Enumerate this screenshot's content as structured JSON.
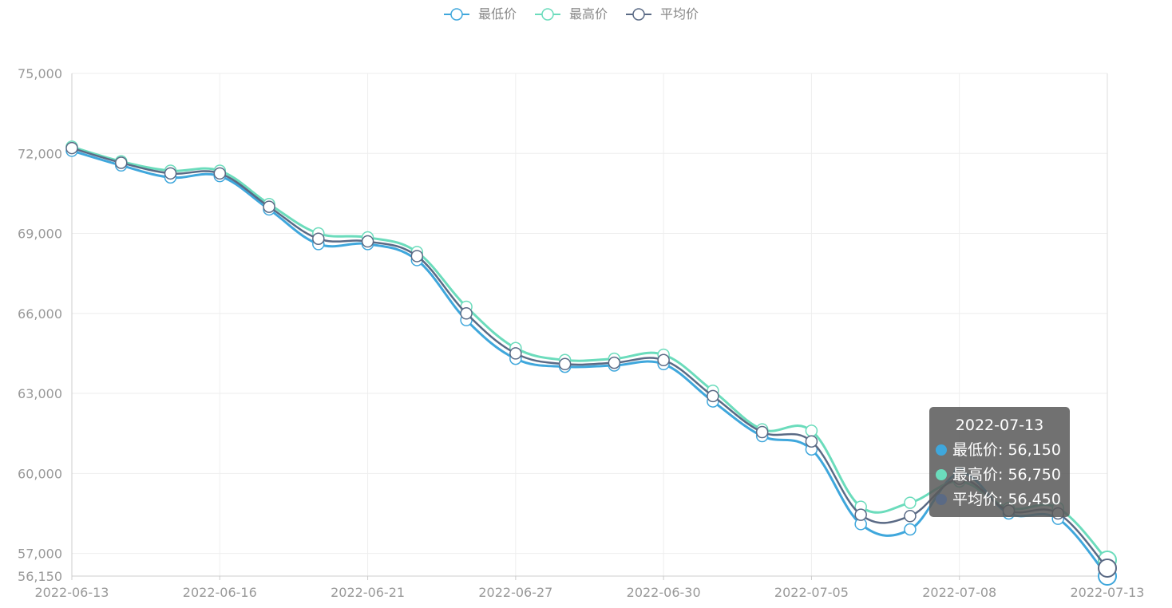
{
  "chart_data": {
    "type": "line",
    "smooth": true,
    "legend_position": "top-center",
    "grid": true,
    "x": [
      "2022-06-13",
      "2022-06-14",
      "2022-06-15",
      "2022-06-16",
      "2022-06-17",
      "2022-06-20",
      "2022-06-21",
      "2022-06-22",
      "2022-06-24",
      "2022-06-27",
      "2022-06-28",
      "2022-06-29",
      "2022-06-30",
      "2022-07-01",
      "2022-07-04",
      "2022-07-05",
      "2022-07-06",
      "2022-07-07",
      "2022-07-08",
      "2022-07-11",
      "2022-07-12",
      "2022-07-13"
    ],
    "x_tick_labels": [
      "2022-06-13",
      "2022-06-16",
      "2022-06-21",
      "2022-06-27",
      "2022-06-30",
      "2022-07-05",
      "2022-07-08",
      "2022-07-13"
    ],
    "y_tick_labels": [
      "56,150",
      "57,000",
      "60,000",
      "63,000",
      "66,000",
      "69,000",
      "72,000",
      "75,000"
    ],
    "ylim": [
      56150,
      75000
    ],
    "series": [
      {
        "name": "最低价",
        "color": "#3fa7dc",
        "values": [
          72100,
          71550,
          71100,
          71150,
          69900,
          68600,
          68600,
          68000,
          65750,
          64300,
          64000,
          64050,
          64100,
          62700,
          61400,
          60900,
          58100,
          57900,
          60000,
          58500,
          58300,
          56150
        ]
      },
      {
        "name": "最高价",
        "color": "#6bdcbc",
        "values": [
          72250,
          71700,
          71350,
          71350,
          70100,
          69000,
          68850,
          68300,
          66250,
          64700,
          64250,
          64300,
          64450,
          63100,
          61650,
          61600,
          58750,
          58900,
          59700,
          58700,
          58700,
          56750
        ]
      },
      {
        "name": "平均价",
        "color": "#5a6a85",
        "values": [
          72200,
          71650,
          71250,
          71250,
          70000,
          68800,
          68700,
          68150,
          66000,
          64500,
          64100,
          64150,
          64250,
          62900,
          61550,
          61200,
          58450,
          58400,
          59800,
          58600,
          58500,
          56450
        ]
      }
    ]
  },
  "tooltip": {
    "title": "2022-07-13",
    "rows": [
      {
        "label": "最低价: 56,150",
        "color": "#3fa7dc"
      },
      {
        "label": "最高价: 56,750",
        "color": "#6bdcbc"
      },
      {
        "label": "平均价: 56,450",
        "color": "#5a6a85"
      }
    ]
  }
}
